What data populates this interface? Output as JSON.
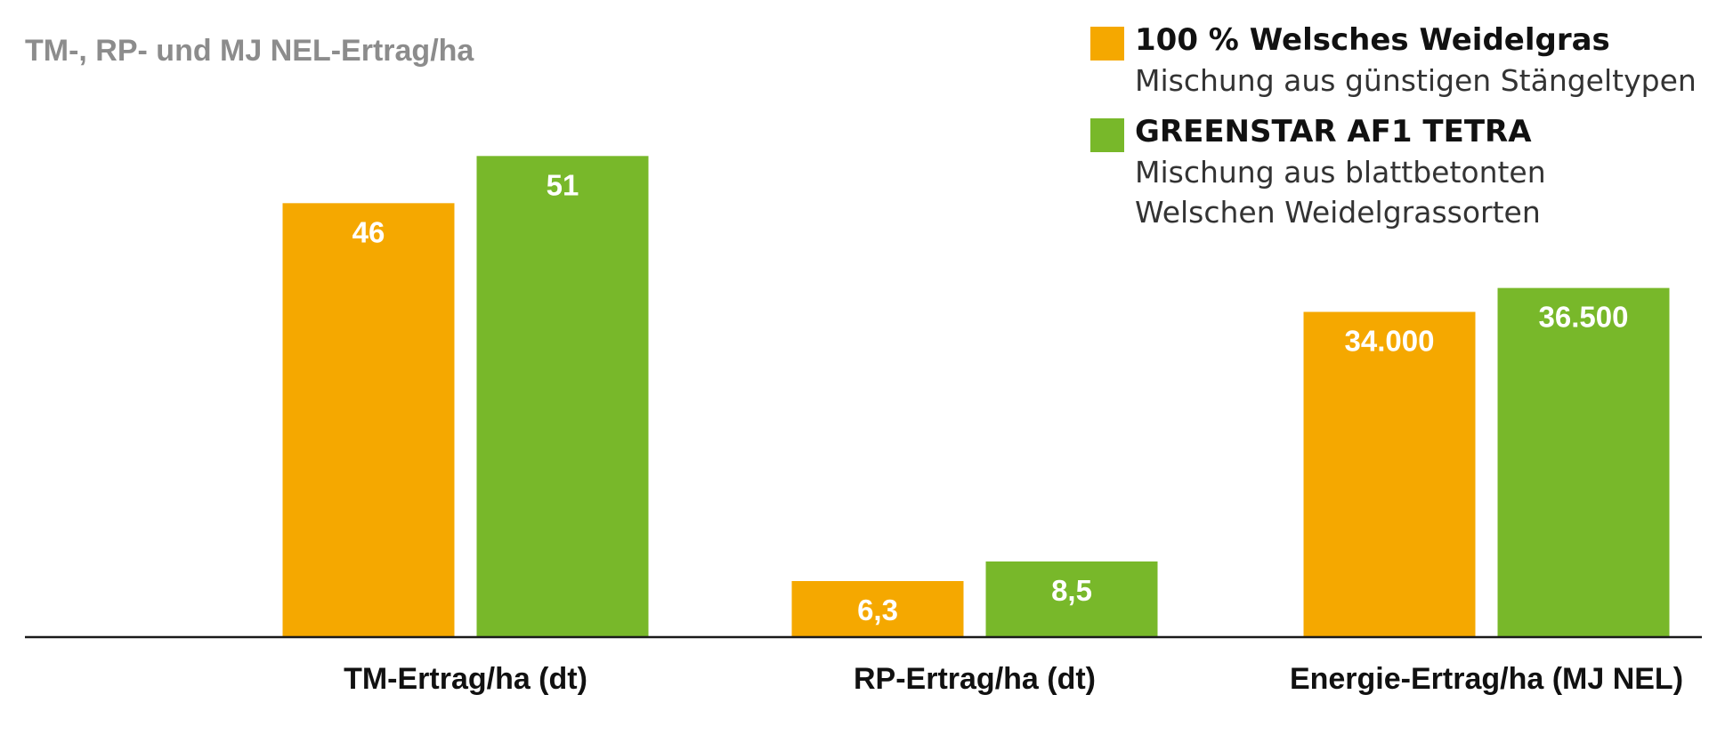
{
  "chart_data": {
    "type": "bar",
    "title": "TM-, RP- und MJ NEL-Ertrag/ha",
    "categories": [
      "TM-Ertrag/ha (dt)",
      "RP-Ertrag/ha (dt)",
      "Energie-Ertrag/ha (MJ NEL)"
    ],
    "series": [
      {
        "name": "100 % Welsches Weidelgras",
        "description": "Mischung aus günstigen Stängeltypen",
        "color": "#f5a800",
        "values": [
          46,
          6.3,
          34000
        ],
        "labels": [
          "46",
          "6,3",
          "34.000"
        ]
      },
      {
        "name": "GREENSTAR AF1 TETRA",
        "description": "Mischung aus blattbetonten\nWelschen Weidelgrassorten",
        "color": "#78b82a",
        "values": [
          51,
          8.5,
          36500
        ],
        "labels": [
          "51",
          "8,5",
          "36.500"
        ]
      }
    ],
    "legend": "top-right",
    "grid": false,
    "axis_line_color": "#1a1a1a"
  }
}
